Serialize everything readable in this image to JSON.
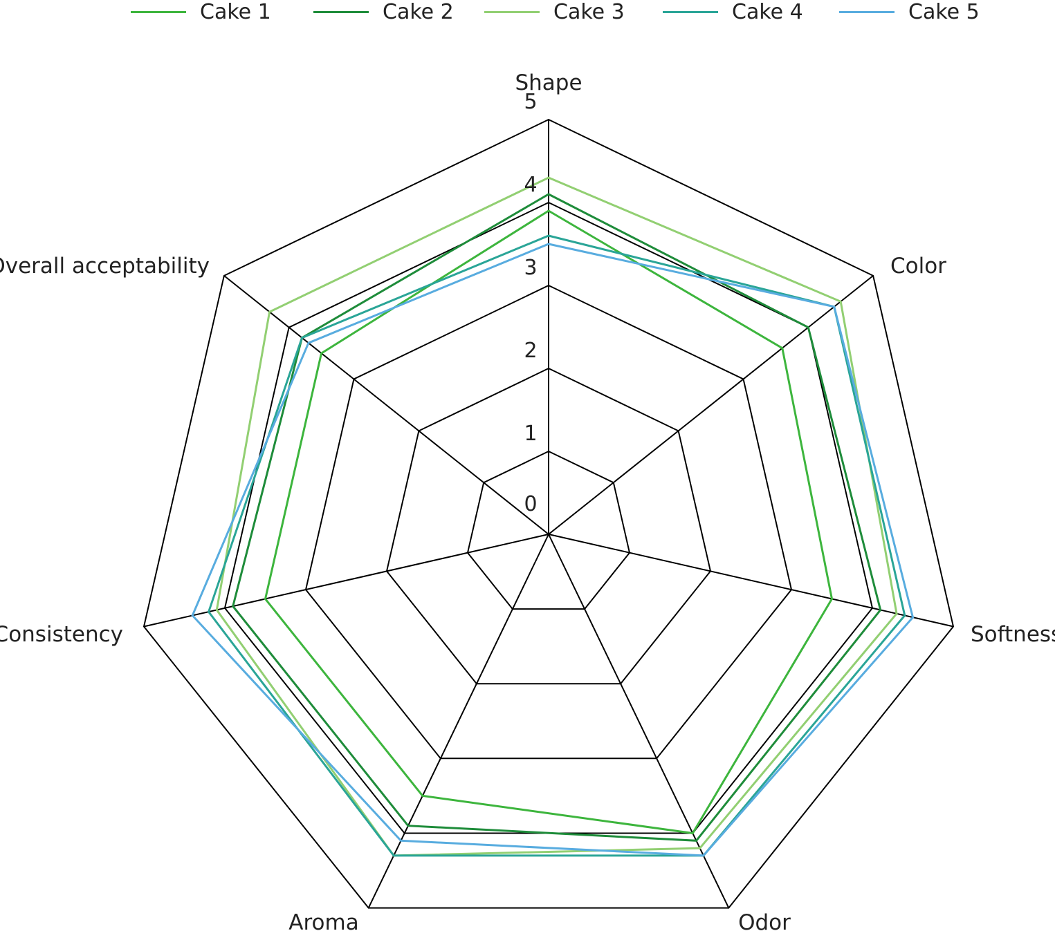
{
  "chart_data": {
    "type": "radar",
    "title": "",
    "axes": [
      "Shape",
      "Color",
      "Softness",
      "Odor",
      "Aroma",
      "Consistency",
      "Overall acceptability"
    ],
    "scale": {
      "min": 0,
      "max": 5,
      "ticks": [
        0,
        1,
        2,
        3,
        4,
        5
      ]
    },
    "legend_position": "top",
    "series": [
      {
        "name": "Cake 1",
        "color": "#3db53d",
        "values": [
          3.9,
          3.6,
          3.5,
          4.0,
          3.5,
          3.5,
          3.5
        ]
      },
      {
        "name": "Cake 2",
        "color": "#1e8c3a",
        "values": [
          4.1,
          4.0,
          4.1,
          4.1,
          3.9,
          3.9,
          3.8
        ]
      },
      {
        "name": "Cake 3",
        "color": "#92cf72",
        "values": [
          4.3,
          4.5,
          4.3,
          4.2,
          4.3,
          4.1,
          4.3
        ]
      },
      {
        "name": "Cake 4",
        "color": "#2aa597",
        "values": [
          3.6,
          4.4,
          4.4,
          4.3,
          4.3,
          4.2,
          3.8
        ]
      },
      {
        "name": "Cake 5",
        "color": "#58acdf",
        "values": [
          3.5,
          4.4,
          4.5,
          4.3,
          4.1,
          4.4,
          3.7
        ]
      }
    ]
  }
}
